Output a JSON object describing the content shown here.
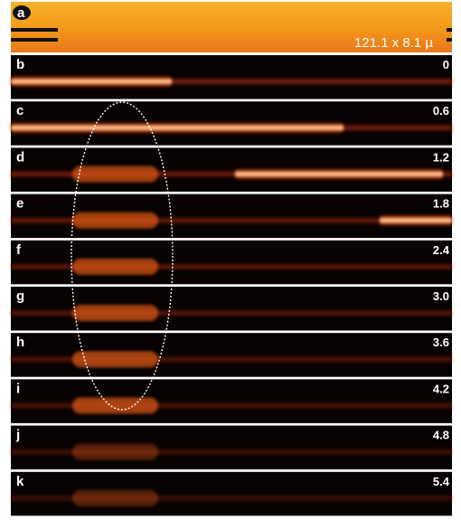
{
  "panel_a": {
    "label": "a",
    "caption": "121.1 x 8.1 µ"
  },
  "panels": [
    {
      "label": "b",
      "time": "0"
    },
    {
      "label": "c",
      "time": "0.6"
    },
    {
      "label": "d",
      "time": "1.2"
    },
    {
      "label": "e",
      "time": "1.8"
    },
    {
      "label": "f",
      "time": "2.4"
    },
    {
      "label": "g",
      "time": "3.0"
    },
    {
      "label": "h",
      "time": "3.6"
    },
    {
      "label": "i",
      "time": "4.2"
    },
    {
      "label": "j",
      "time": "4.8"
    },
    {
      "label": "k",
      "time": "5.4"
    }
  ]
}
